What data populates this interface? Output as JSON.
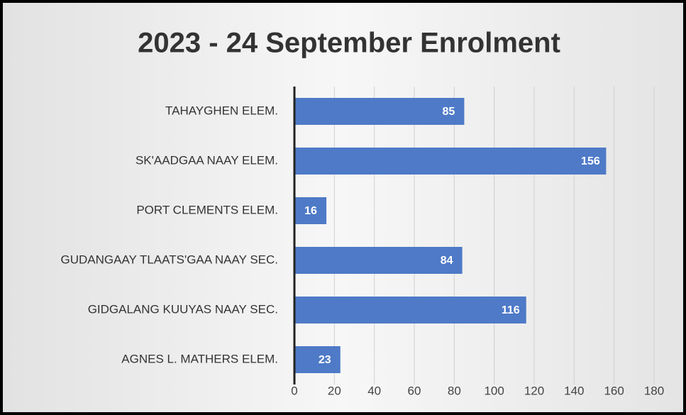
{
  "chart_data": {
    "type": "hbar",
    "title": "2023 - 24 September Enrolment",
    "categories": [
      "TAHAYGHEN ELEM.",
      "SK'AADGAA NAAY ELEM.",
      "PORT CLEMENTS ELEM.",
      "GUDANGAAY TLAATS'GAA NAAY SEC.",
      "GIDGALANG KUUYAS NAAY SEC.",
      "AGNES L. MATHERS ELEM."
    ],
    "values": [
      85,
      156,
      16,
      84,
      116,
      23
    ],
    "color": "#4e7ac7",
    "xlim": [
      0,
      180
    ],
    "xticks": [
      0,
      20,
      40,
      60,
      80,
      100,
      120,
      140,
      160,
      180
    ],
    "grid": true
  }
}
